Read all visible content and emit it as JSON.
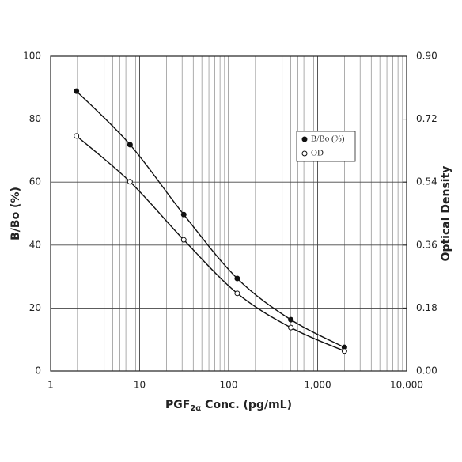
{
  "chart_data": {
    "type": "line",
    "x_log": true,
    "xlim": [
      1,
      10000
    ],
    "xticks": [
      1,
      10,
      100,
      {
        "value": 1000,
        "label": "1,000"
      },
      {
        "value": 10000,
        "label": "10,000"
      }
    ],
    "minor_grid": true,
    "ylim": [
      0,
      100
    ],
    "yticks": [
      0,
      20,
      40,
      60,
      80,
      100
    ],
    "y2lim": [
      0,
      0.9
    ],
    "y2ticks": [
      {
        "value": 0,
        "label": "0.00"
      },
      {
        "value": 0.18,
        "label": "0.18"
      },
      {
        "value": 0.36,
        "label": "0.36"
      },
      {
        "value": 0.54,
        "label": "0.54"
      },
      {
        "value": 0.72,
        "label": "0.72"
      },
      {
        "value": 0.9,
        "label": "0.90"
      }
    ],
    "grid": true,
    "ylabel": "B/Bo (%)",
    "y2label": "Optical Density",
    "xlabel": {
      "main": "PGF",
      "sub": "2α",
      "rest": "Conc. (pg/mL)"
    },
    "legend": "upper right",
    "x": [
      1.95,
      7.8,
      31.3,
      125,
      500,
      2000
    ],
    "series": [
      {
        "name": "B/Bo (%)",
        "color": "#111111",
        "marker": "filled",
        "values": [
          88.9,
          71.9,
          49.7,
          29.4,
          16.3,
          7.5
        ]
      },
      {
        "name": "OD",
        "color": "#111111",
        "marker": "open",
        "axis": "y2",
        "values": [
          0.672,
          0.541,
          0.375,
          0.222,
          0.124,
          0.057
        ]
      }
    ]
  }
}
